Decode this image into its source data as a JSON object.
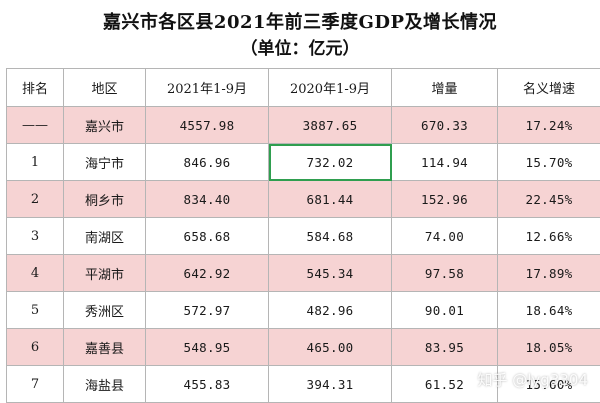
{
  "title": "嘉兴市各区县2021年前三季度GDP及增长情况",
  "subtitle": "（单位：亿元）",
  "headers": [
    "排名",
    "地区",
    "2021年1-9月",
    "2020年1-9月",
    "增量",
    "名义增速"
  ],
  "rows": [
    [
      "——",
      "嘉兴市",
      "4557.98",
      "3887.65",
      "670.33",
      "17.24%"
    ],
    [
      "1",
      "海宁市",
      "846.96",
      "732.02",
      "114.94",
      "15.70%"
    ],
    [
      "2",
      "桐乡市",
      "834.40",
      "681.44",
      "152.96",
      "22.45%"
    ],
    [
      "3",
      "南湖区",
      "658.68",
      "584.68",
      "74.00",
      "12.66%"
    ],
    [
      "4",
      "平湖市",
      "642.92",
      "545.34",
      "97.58",
      "17.89%"
    ],
    [
      "5",
      "秀洲区",
      "572.97",
      "482.96",
      "90.01",
      "18.64%"
    ],
    [
      "6",
      "嘉善县",
      "548.95",
      "465.00",
      "83.95",
      "18.05%"
    ],
    [
      "7",
      "海盐县",
      "455.83",
      "394.31",
      "61.52",
      "15.60%"
    ]
  ],
  "watermark": "知乎 @lyg3304",
  "colors": {
    "row_highlight": "#f6d3d3",
    "selected_cell_border": "#2f9e4f",
    "grid": "#b5b5b5"
  }
}
